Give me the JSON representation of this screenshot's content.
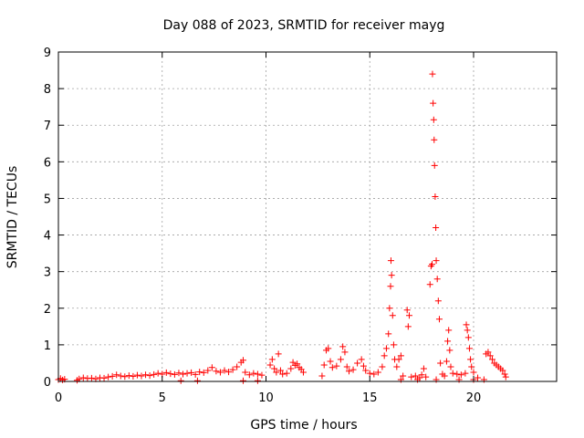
{
  "chart_data": {
    "type": "scatter",
    "title": "Day 088 of 2023, SRMTID for receiver mayg",
    "xlabel": "GPS time / hours",
    "ylabel": "SRMTID / TECUs",
    "xlim": [
      0,
      24
    ],
    "ylim": [
      0,
      9
    ],
    "xticks": [
      0,
      5,
      10,
      15,
      20
    ],
    "yticks": [
      0,
      1,
      2,
      3,
      4,
      5,
      6,
      7,
      8,
      9
    ],
    "grid": true,
    "marker": "plus",
    "color": "#ff0000",
    "series": [
      {
        "name": "SRMTID",
        "points": [
          [
            0.0,
            0.05
          ],
          [
            0.1,
            0.08
          ],
          [
            0.2,
            0.04
          ],
          [
            0.3,
            0.06
          ],
          [
            0.9,
            0.03
          ],
          [
            1.0,
            0.07
          ],
          [
            1.2,
            0.1
          ],
          [
            1.4,
            0.08
          ],
          [
            1.6,
            0.09
          ],
          [
            1.8,
            0.07
          ],
          [
            2.0,
            0.1
          ],
          [
            2.2,
            0.09
          ],
          [
            2.4,
            0.12
          ],
          [
            2.6,
            0.14
          ],
          [
            2.8,
            0.18
          ],
          [
            3.0,
            0.15
          ],
          [
            3.2,
            0.13
          ],
          [
            3.4,
            0.16
          ],
          [
            3.6,
            0.14
          ],
          [
            3.8,
            0.17
          ],
          [
            4.0,
            0.15
          ],
          [
            4.2,
            0.18
          ],
          [
            4.4,
            0.16
          ],
          [
            4.6,
            0.19
          ],
          [
            4.8,
            0.22
          ],
          [
            5.0,
            0.2
          ],
          [
            5.2,
            0.24
          ],
          [
            5.4,
            0.21
          ],
          [
            5.6,
            0.19
          ],
          [
            5.8,
            0.23
          ],
          [
            6.0,
            0.2
          ],
          [
            6.2,
            0.22
          ],
          [
            6.4,
            0.24
          ],
          [
            6.6,
            0.19
          ],
          [
            6.8,
            0.26
          ],
          [
            7.0,
            0.24
          ],
          [
            7.2,
            0.3
          ],
          [
            7.4,
            0.38
          ],
          [
            7.6,
            0.28
          ],
          [
            7.8,
            0.25
          ],
          [
            8.0,
            0.3
          ],
          [
            8.2,
            0.26
          ],
          [
            8.4,
            0.32
          ],
          [
            8.6,
            0.4
          ],
          [
            8.8,
            0.52
          ],
          [
            8.9,
            0.58
          ],
          [
            9.0,
            0.25
          ],
          [
            9.2,
            0.18
          ],
          [
            9.4,
            0.22
          ],
          [
            9.6,
            0.2
          ],
          [
            9.8,
            0.17
          ],
          [
            5.9,
            0.02
          ],
          [
            6.7,
            0.02
          ],
          [
            8.9,
            0.02
          ],
          [
            9.6,
            0.02
          ],
          [
            10.2,
            0.45
          ],
          [
            10.3,
            0.6
          ],
          [
            10.4,
            0.35
          ],
          [
            10.5,
            0.25
          ],
          [
            10.6,
            0.75
          ],
          [
            10.7,
            0.3
          ],
          [
            10.8,
            0.2
          ],
          [
            11.0,
            0.22
          ],
          [
            11.2,
            0.35
          ],
          [
            11.3,
            0.52
          ],
          [
            11.4,
            0.44
          ],
          [
            11.5,
            0.48
          ],
          [
            11.6,
            0.38
          ],
          [
            11.7,
            0.33
          ],
          [
            11.8,
            0.25
          ],
          [
            12.7,
            0.15
          ],
          [
            12.8,
            0.45
          ],
          [
            12.9,
            0.85
          ],
          [
            13.0,
            0.9
          ],
          [
            13.1,
            0.55
          ],
          [
            13.2,
            0.38
          ],
          [
            13.4,
            0.42
          ],
          [
            13.6,
            0.6
          ],
          [
            13.7,
            0.95
          ],
          [
            13.8,
            0.8
          ],
          [
            13.9,
            0.4
          ],
          [
            14.0,
            0.28
          ],
          [
            14.2,
            0.32
          ],
          [
            14.4,
            0.5
          ],
          [
            14.6,
            0.6
          ],
          [
            14.7,
            0.42
          ],
          [
            14.8,
            0.3
          ],
          [
            15.0,
            0.22
          ],
          [
            15.2,
            0.2
          ],
          [
            15.4,
            0.25
          ],
          [
            15.6,
            0.4
          ],
          [
            15.7,
            0.7
          ],
          [
            15.8,
            0.9
          ],
          [
            15.9,
            1.3
          ],
          [
            15.95,
            2.0
          ],
          [
            16.0,
            2.6
          ],
          [
            16.02,
            3.3
          ],
          [
            16.05,
            2.9
          ],
          [
            16.1,
            1.8
          ],
          [
            16.15,
            1.0
          ],
          [
            16.2,
            0.6
          ],
          [
            16.3,
            0.4
          ],
          [
            16.4,
            0.6
          ],
          [
            16.5,
            0.7
          ],
          [
            16.6,
            0.15
          ],
          [
            16.8,
            1.95
          ],
          [
            16.85,
            1.5
          ],
          [
            16.9,
            1.8
          ],
          [
            17.0,
            0.12
          ],
          [
            17.2,
            0.15
          ],
          [
            17.4,
            0.1
          ],
          [
            17.5,
            0.18
          ],
          [
            17.6,
            0.35
          ],
          [
            17.7,
            0.12
          ],
          [
            17.9,
            2.65
          ],
          [
            17.95,
            3.15
          ],
          [
            18.0,
            3.2
          ],
          [
            18.02,
            8.4
          ],
          [
            18.05,
            7.6
          ],
          [
            18.08,
            7.15
          ],
          [
            18.1,
            6.6
          ],
          [
            18.12,
            5.9
          ],
          [
            18.15,
            5.05
          ],
          [
            18.18,
            4.2
          ],
          [
            18.2,
            3.3
          ],
          [
            18.25,
            2.8
          ],
          [
            18.3,
            2.2
          ],
          [
            18.35,
            1.7
          ],
          [
            18.4,
            0.5
          ],
          [
            18.5,
            0.2
          ],
          [
            18.6,
            0.15
          ],
          [
            18.7,
            0.55
          ],
          [
            18.75,
            1.1
          ],
          [
            18.8,
            1.4
          ],
          [
            18.85,
            0.85
          ],
          [
            18.9,
            0.4
          ],
          [
            19.0,
            0.22
          ],
          [
            19.2,
            0.2
          ],
          [
            19.4,
            0.18
          ],
          [
            19.6,
            0.22
          ],
          [
            19.65,
            1.55
          ],
          [
            19.7,
            1.4
          ],
          [
            19.75,
            1.2
          ],
          [
            19.8,
            0.9
          ],
          [
            19.85,
            0.6
          ],
          [
            19.9,
            0.4
          ],
          [
            20.0,
            0.25
          ],
          [
            20.2,
            0.1
          ],
          [
            20.5,
            0.05
          ],
          [
            20.6,
            0.75
          ],
          [
            20.7,
            0.8
          ],
          [
            20.8,
            0.7
          ],
          [
            20.9,
            0.6
          ],
          [
            21.0,
            0.5
          ],
          [
            21.1,
            0.45
          ],
          [
            21.2,
            0.4
          ],
          [
            21.3,
            0.35
          ],
          [
            21.4,
            0.3
          ],
          [
            21.5,
            0.2
          ],
          [
            21.55,
            0.12
          ],
          [
            16.5,
            0.05
          ],
          [
            17.3,
            0.05
          ],
          [
            18.2,
            0.05
          ],
          [
            19.3,
            0.05
          ],
          [
            20.0,
            0.05
          ]
        ]
      }
    ]
  }
}
